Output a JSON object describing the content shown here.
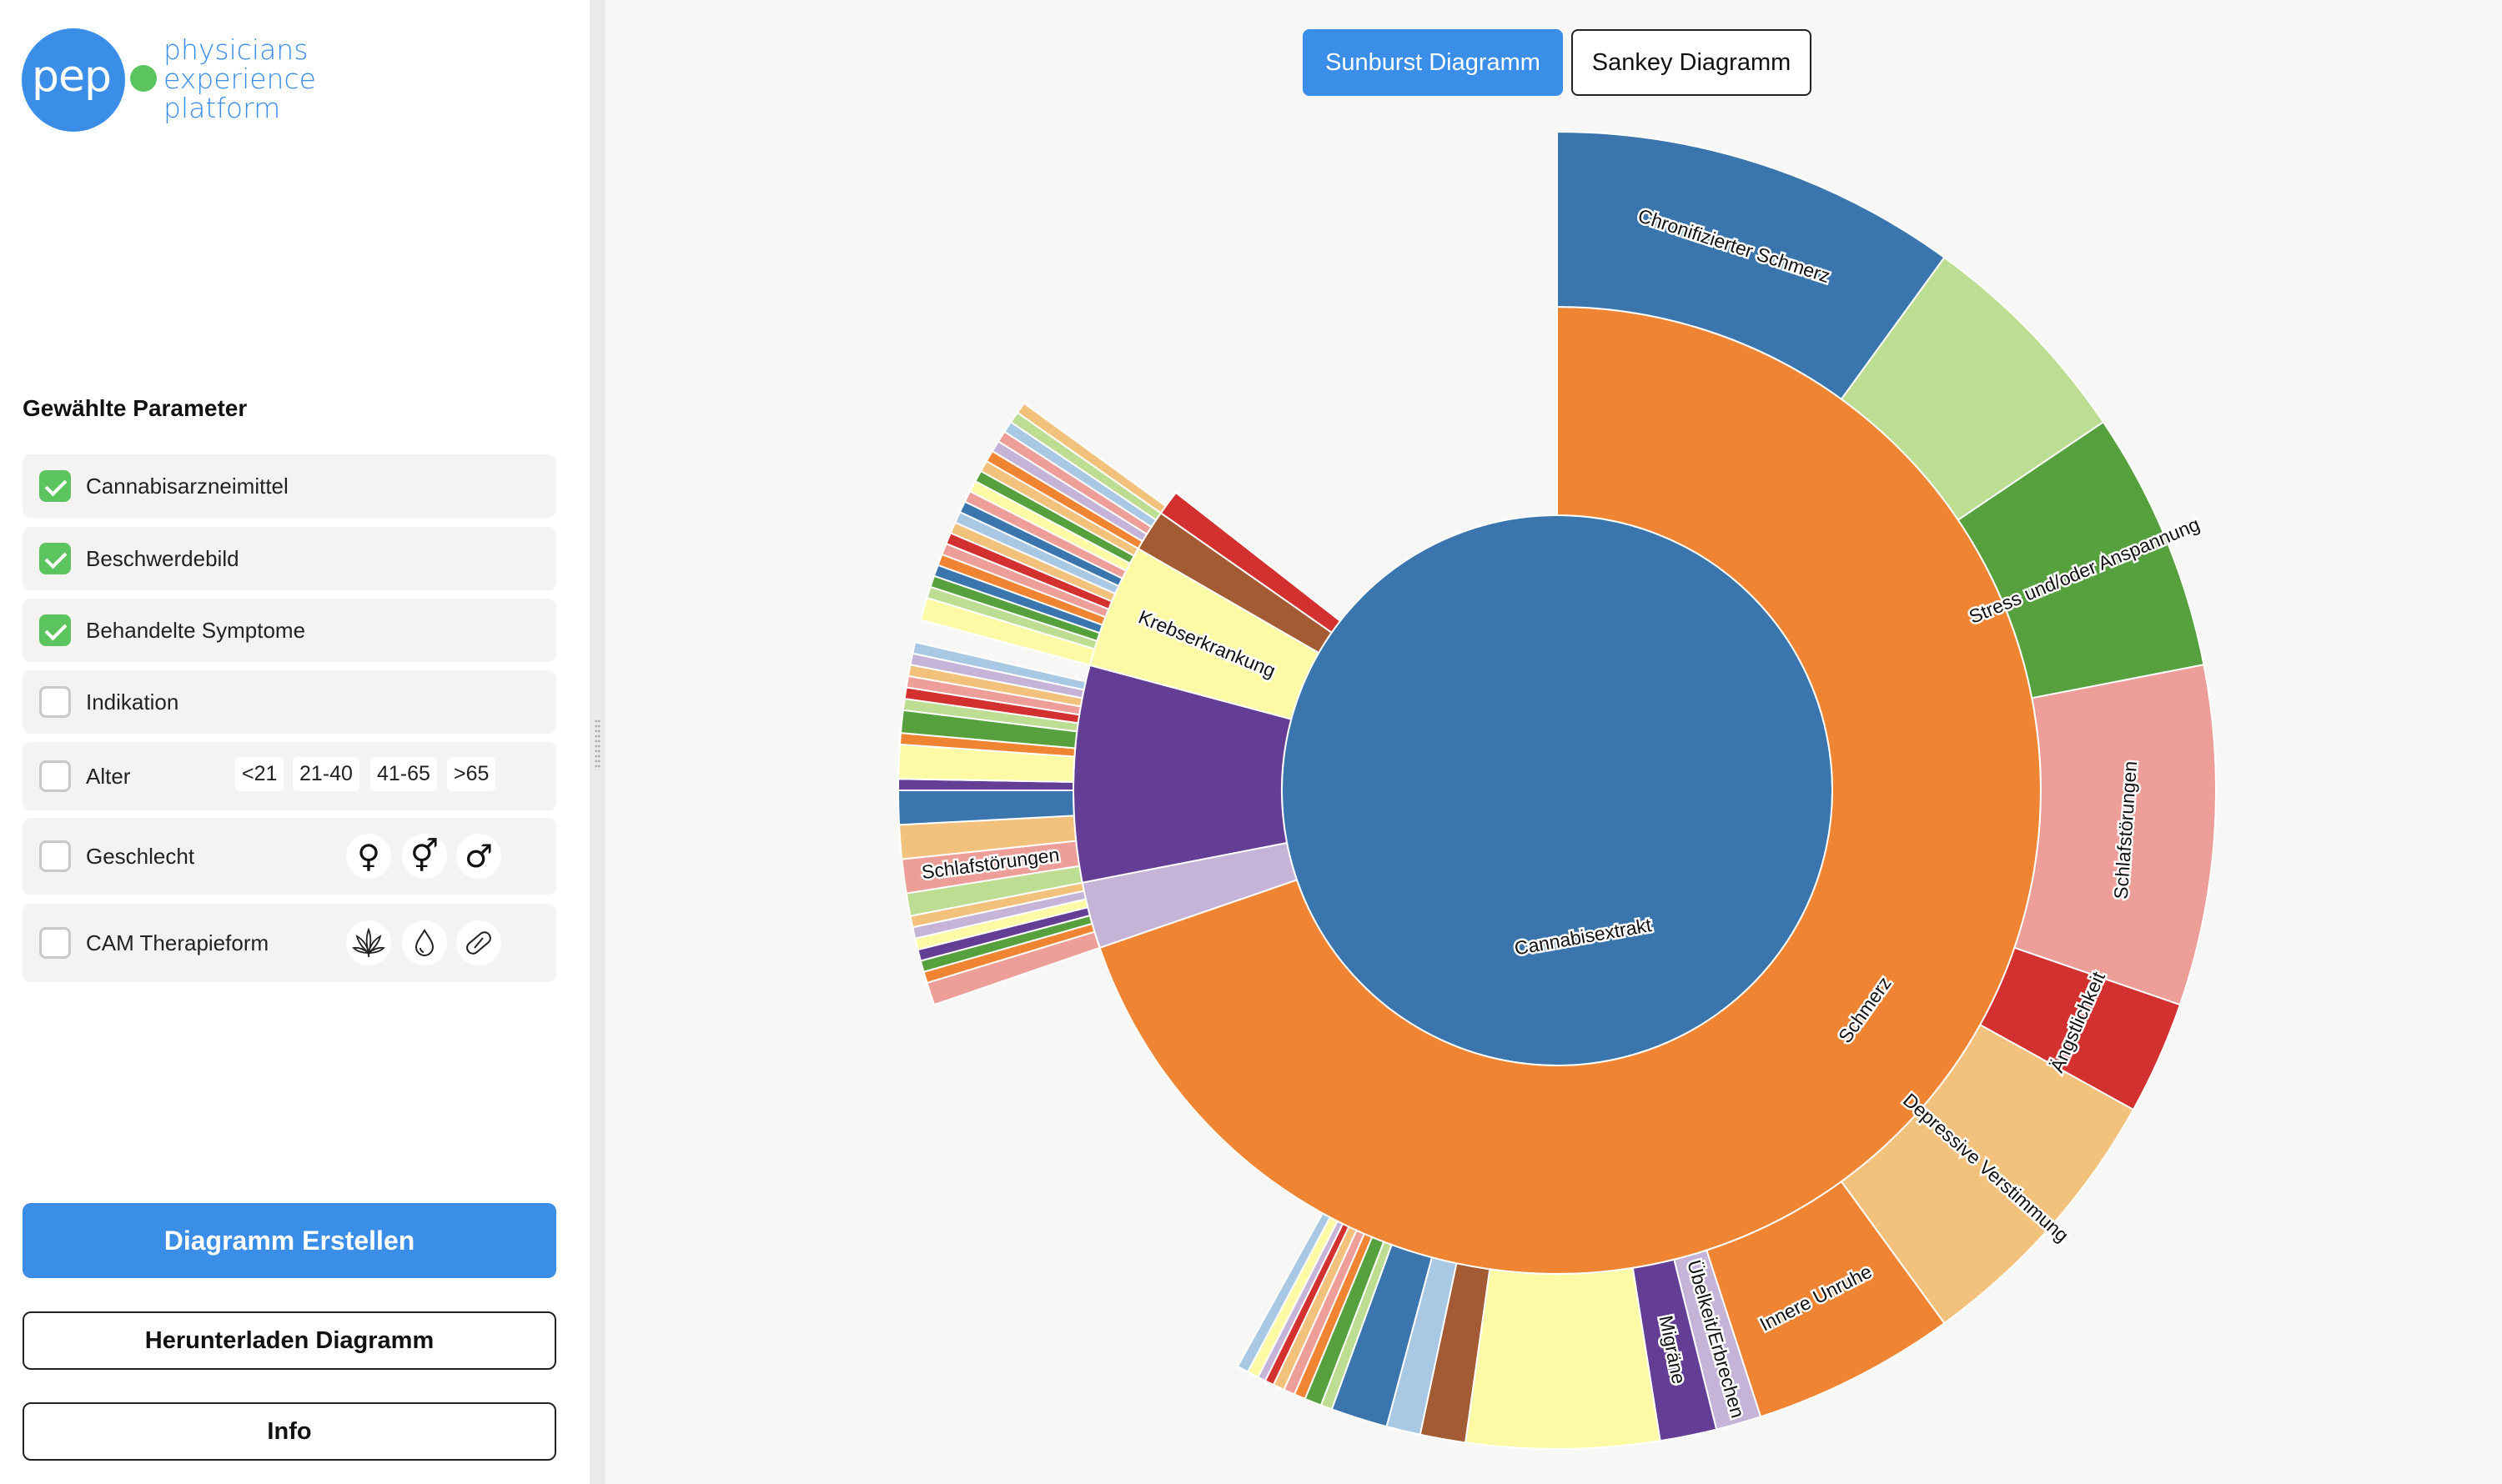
{
  "logo": {
    "mark": "pep",
    "words": [
      "physicians",
      "experience",
      "platform"
    ]
  },
  "params": {
    "title": "Gewählte Parameter",
    "items": [
      {
        "label": "Cannabisarzneimittel",
        "checked": true
      },
      {
        "label": "Beschwerdebild",
        "checked": true
      },
      {
        "label": "Behandelte Symptome",
        "checked": true
      },
      {
        "label": "Indikation",
        "checked": false
      },
      {
        "label": "Alter",
        "checked": false,
        "options": [
          "<21",
          "21-40",
          "41-65",
          ">65"
        ]
      },
      {
        "label": "Geschlecht",
        "checked": false,
        "options": [
          "♀",
          "⚥",
          "♂"
        ]
      },
      {
        "label": "CAM Therapieform",
        "checked": false,
        "options": [
          "cannabis-leaf-icon",
          "drop-icon",
          "capsule-icon"
        ]
      }
    ]
  },
  "buttons": {
    "create": "Diagramm Erstellen",
    "download": "Herunterladen Diagramm",
    "info": "Info"
  },
  "tabs": {
    "sunburst": "Sunburst Diagramm",
    "sankey": "Sankey Diagramm",
    "active": "sunburst"
  },
  "chart_data": {
    "type": "sunburst",
    "levels": [
      "Cannabisarzneimittel",
      "Beschwerdebild",
      "Behandelte Symptome"
    ],
    "root": {
      "label": "Cannabisextrakt",
      "color": "#3a76ad",
      "start": 0,
      "end": 360
    },
    "level1": [
      {
        "label": "Schmerz",
        "color": "#ef8533",
        "start": 0,
        "end": 251,
        "labeled": true
      },
      {
        "label": "",
        "color": "#c6b4d8",
        "start": 251,
        "end": 259,
        "labeled": false
      },
      {
        "label": "",
        "color": "#633e94",
        "start": 259,
        "end": 285,
        "labeled": false
      },
      {
        "label": "Krebserkrankung",
        "color": "#fdfaa6",
        "start": 285,
        "end": 300,
        "labeled": true
      },
      {
        "label": "",
        "color": "#a25b32",
        "start": 300,
        "end": 305,
        "labeled": false
      },
      {
        "label": "",
        "color": "#d33030",
        "start": 305,
        "end": 308,
        "labeled": false
      }
    ],
    "level2": [
      {
        "label": "Chronifizierter Schmerz",
        "color": "#3a76ad",
        "start": 0,
        "end": 36,
        "labeled": true
      },
      {
        "label": "",
        "color": "#bcdd92",
        "start": 36,
        "end": 56,
        "labeled": false
      },
      {
        "label": "Stress und/oder Anspannung",
        "color": "#56a03e",
        "start": 56,
        "end": 79,
        "labeled": true
      },
      {
        "label": "Schlafstörungen",
        "color": "#ed9e99",
        "start": 79,
        "end": 109,
        "labeled": true
      },
      {
        "label": "Ängstlichkeit",
        "color": "#d33030",
        "start": 109,
        "end": 119,
        "labeled": true
      },
      {
        "label": "Depressive Verstimmung",
        "color": "#f2c27c",
        "start": 119,
        "end": 144,
        "labeled": true
      },
      {
        "label": "Innere Unruhe",
        "color": "#ef8533",
        "start": 144,
        "end": 162,
        "labeled": true
      },
      {
        "label": "Übelkeit/Erbrechen",
        "color": "#c6b4d8",
        "start": 162,
        "end": 166,
        "labeled": true
      },
      {
        "label": "Migräne",
        "color": "#633e94",
        "start": 166,
        "end": 171,
        "labeled": true
      },
      {
        "label": "",
        "color": "#fdfaa6",
        "start": 171,
        "end": 188,
        "labeled": false
      },
      {
        "label": "",
        "color": "#a25b32",
        "start": 188,
        "end": 192,
        "labeled": false
      },
      {
        "label": "",
        "color": "#a8c8e4",
        "start": 192,
        "end": 195,
        "labeled": false
      },
      {
        "label": "",
        "color": "#3a76ad",
        "start": 195,
        "end": 200,
        "labeled": false
      },
      {
        "label": "",
        "color": "#bcdd92",
        "start": 200,
        "end": 201,
        "labeled": false
      },
      {
        "label": "",
        "color": "#56a03e",
        "start": 201,
        "end": 202.5,
        "labeled": false
      },
      {
        "label": "",
        "color": "#ef8533",
        "start": 202.5,
        "end": 203.5,
        "labeled": false
      },
      {
        "label": "",
        "color": "#ed9e99",
        "start": 203.5,
        "end": 204.5,
        "labeled": false
      },
      {
        "label": "",
        "color": "#f2c27c",
        "start": 204.5,
        "end": 205.5,
        "labeled": false
      },
      {
        "label": "",
        "color": "#d33030",
        "start": 205.5,
        "end": 206.3,
        "labeled": false
      },
      {
        "label": "",
        "color": "#c6b4d8",
        "start": 206.3,
        "end": 207,
        "labeled": false
      },
      {
        "label": "",
        "color": "#fdfaa6",
        "start": 207,
        "end": 208,
        "labeled": false
      },
      {
        "label": "",
        "color": "#a8c8e4",
        "start": 208,
        "end": 209,
        "labeled": false
      },
      {
        "label": "",
        "color": "#ed9e99",
        "start": 251,
        "end": 253,
        "labeled": false
      },
      {
        "label": "",
        "color": "#ef8533",
        "start": 253,
        "end": 254,
        "labeled": false
      },
      {
        "label": "",
        "color": "#56a03e",
        "start": 254,
        "end": 255,
        "labeled": false
      },
      {
        "label": "",
        "color": "#633e94",
        "start": 255,
        "end": 256,
        "labeled": false
      },
      {
        "label": "",
        "color": "#fdfaa6",
        "start": 256,
        "end": 257,
        "labeled": false
      },
      {
        "label": "",
        "color": "#c6b4d8",
        "start": 257,
        "end": 258,
        "labeled": false
      },
      {
        "label": "",
        "color": "#f2c27c",
        "start": 258,
        "end": 259,
        "labeled": false
      },
      {
        "label": "",
        "color": "#bcdd92",
        "start": 259,
        "end": 261,
        "labeled": false
      },
      {
        "label": "Schlafstörungen",
        "color": "#ed9e99",
        "start": 261,
        "end": 264,
        "labeled": true
      },
      {
        "label": "",
        "color": "#f2c27c",
        "start": 264,
        "end": 267,
        "labeled": false
      },
      {
        "label": "",
        "color": "#3a76ad",
        "start": 267,
        "end": 270,
        "labeled": false
      },
      {
        "label": "",
        "color": "#633e94",
        "start": 270,
        "end": 271,
        "labeled": false
      },
      {
        "label": "",
        "color": "#fdfaa6",
        "start": 271,
        "end": 274,
        "labeled": false
      },
      {
        "label": "",
        "color": "#ef8533",
        "start": 274,
        "end": 275,
        "labeled": false
      },
      {
        "label": "",
        "color": "#56a03e",
        "start": 275,
        "end": 277,
        "labeled": false
      },
      {
        "label": "",
        "color": "#bcdd92",
        "start": 277,
        "end": 278,
        "labeled": false
      },
      {
        "label": "",
        "color": "#d33030",
        "start": 278,
        "end": 279,
        "labeled": false
      },
      {
        "label": "",
        "color": "#ed9e99",
        "start": 279,
        "end": 280,
        "labeled": false
      },
      {
        "label": "",
        "color": "#f2c27c",
        "start": 280,
        "end": 281,
        "labeled": false
      },
      {
        "label": "",
        "color": "#c6b4d8",
        "start": 281,
        "end": 282,
        "labeled": false
      },
      {
        "label": "",
        "color": "#a8c8e4",
        "start": 282,
        "end": 283,
        "labeled": false
      },
      {
        "label": "",
        "color": "#fdfaa6",
        "start": 285,
        "end": 287,
        "labeled": false
      },
      {
        "label": "",
        "color": "#bcdd92",
        "start": 287,
        "end": 288,
        "labeled": false
      },
      {
        "label": "",
        "color": "#56a03e",
        "start": 288,
        "end": 289,
        "labeled": false
      },
      {
        "label": "",
        "color": "#3a76ad",
        "start": 289,
        "end": 290,
        "labeled": false
      },
      {
        "label": "",
        "color": "#ef8533",
        "start": 290,
        "end": 291,
        "labeled": false
      },
      {
        "label": "",
        "color": "#ed9e99",
        "start": 291,
        "end": 292,
        "labeled": false
      },
      {
        "label": "",
        "color": "#d33030",
        "start": 292,
        "end": 293,
        "labeled": false
      },
      {
        "label": "",
        "color": "#f2c27c",
        "start": 293,
        "end": 294,
        "labeled": false
      },
      {
        "label": "",
        "color": "#a8c8e4",
        "start": 294,
        "end": 295,
        "labeled": false
      },
      {
        "label": "",
        "color": "#3a76ad",
        "start": 295,
        "end": 296,
        "labeled": false
      },
      {
        "label": "",
        "color": "#ed9e99",
        "start": 296,
        "end": 297,
        "labeled": false
      },
      {
        "label": "",
        "color": "#fdfaa6",
        "start": 297,
        "end": 298,
        "labeled": false
      },
      {
        "label": "",
        "color": "#56a03e",
        "start": 298,
        "end": 299,
        "labeled": false
      },
      {
        "label": "",
        "color": "#f2c27c",
        "start": 299,
        "end": 300,
        "labeled": false
      },
      {
        "label": "",
        "color": "#ef8533",
        "start": 300,
        "end": 301,
        "labeled": false
      },
      {
        "label": "",
        "color": "#c6b4d8",
        "start": 301,
        "end": 302,
        "labeled": false
      },
      {
        "label": "",
        "color": "#ed9e99",
        "start": 302,
        "end": 303,
        "labeled": false
      },
      {
        "label": "",
        "color": "#a8c8e4",
        "start": 303,
        "end": 304,
        "labeled": false
      },
      {
        "label": "",
        "color": "#bcdd92",
        "start": 304,
        "end": 305,
        "labeled": false
      },
      {
        "label": "",
        "color": "#f2c27c",
        "start": 305,
        "end": 306,
        "labeled": false
      }
    ]
  }
}
